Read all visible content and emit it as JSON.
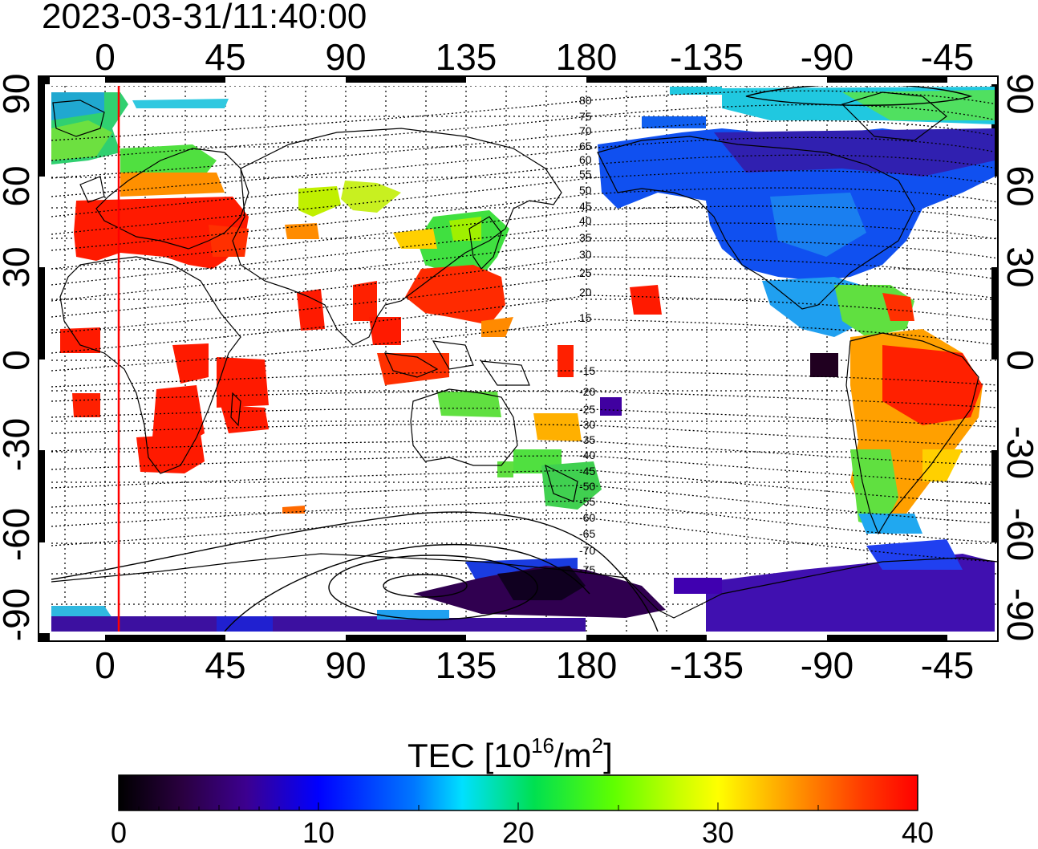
{
  "title": "2023-03-31/11:40:00",
  "x_ticks": [
    "0",
    "45",
    "90",
    "135",
    "180",
    "-135",
    "-90",
    "-45"
  ],
  "y_ticks": [
    "90",
    "60",
    "30",
    "0",
    "-30",
    "-60",
    "-90"
  ],
  "mlat_labels": [
    "80",
    "75",
    "70",
    "65",
    "60",
    "55",
    "50",
    "45",
    "40",
    "35",
    "30",
    "25",
    "20",
    "15",
    "-15",
    "-20",
    "-25",
    "-30",
    "-35",
    "-40",
    "-45",
    "-50",
    "-55",
    "-60",
    "-65",
    "-70",
    "-75"
  ],
  "colorbar": {
    "title_prefix": "TEC  [10",
    "title_exp1": "16",
    "title_mid": "/m",
    "title_exp2": "2",
    "title_suffix": "]",
    "ticks": [
      "0",
      "10",
      "20",
      "30",
      "40"
    ],
    "min": 0,
    "max": 40
  },
  "terminator_longitude": 3
}
